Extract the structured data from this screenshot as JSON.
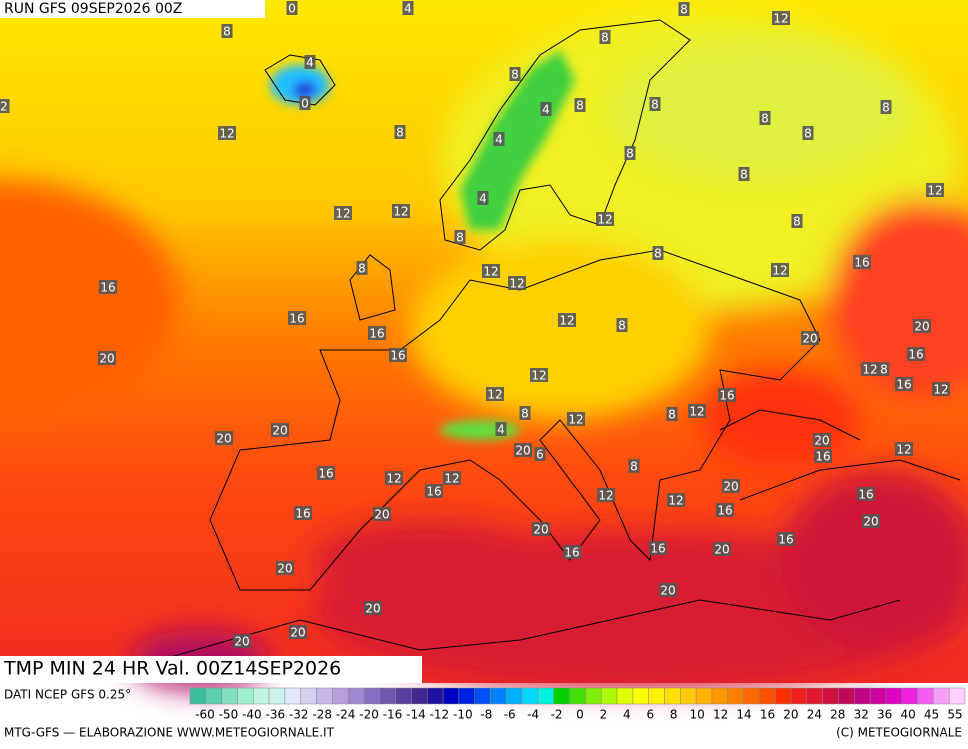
{
  "header": {
    "run": "RUN GFS 09SEP2026 00Z",
    "field": "TMP MIN 24 HR Val. 00Z14SEP2026"
  },
  "map_labels": [
    0,
    4,
    8,
    12,
    8,
    8,
    4,
    8,
    0,
    2,
    4,
    8,
    8,
    8,
    8,
    12,
    8,
    8,
    4,
    8,
    8,
    12,
    4,
    12,
    12,
    12,
    8,
    8,
    8,
    16,
    8,
    12,
    12,
    12,
    16,
    16,
    12,
    8,
    20,
    16,
    20,
    20,
    16,
    16,
    12,
    8,
    12,
    16,
    12,
    12,
    16,
    8,
    8,
    12,
    12,
    4,
    20,
    20,
    20,
    20,
    6,
    16,
    12,
    8,
    16,
    12,
    12,
    20,
    16,
    16,
    12,
    12,
    16,
    20,
    16,
    20,
    20,
    16,
    16,
    20,
    16,
    20,
    20,
    20,
    20,
    20
  ],
  "legend": {
    "source": "DATI NCEP GFS 0.25°",
    "colors": [
      "#3fbf9f",
      "#5fcfaf",
      "#7fdfbf",
      "#9fefcf",
      "#bff5e0",
      "#d0f0f0",
      "#e0e8f8",
      "#d8d0f0",
      "#c8b8e8",
      "#b8a0e0",
      "#a088d0",
      "#8870c0",
      "#7058b0",
      "#5840a0",
      "#402890",
      "#2010a0",
      "#0000c0",
      "#0020e0",
      "#0050ff",
      "#0080ff",
      "#00b0ff",
      "#00d8ff",
      "#00f0e0",
      "#00d000",
      "#40e000",
      "#80f000",
      "#b0f800",
      "#e0ff00",
      "#ffff00",
      "#fff000",
      "#ffe000",
      "#ffc800",
      "#ffb000",
      "#ff9800",
      "#ff8000",
      "#ff6800",
      "#ff5000",
      "#ff3000",
      "#f02020",
      "#e01830",
      "#d01040",
      "#c00858",
      "#c00080",
      "#d000a0",
      "#e000c0",
      "#f020e0",
      "#f060f0",
      "#f8a0f8",
      "#ffd0ff"
    ],
    "ticks": [
      -60,
      -50,
      -40,
      -36,
      -32,
      -28,
      -24,
      -20,
      -16,
      -14,
      -12,
      -10,
      -8,
      -6,
      -4,
      -2,
      0,
      2,
      4,
      6,
      8,
      10,
      12,
      14,
      16,
      20,
      24,
      28,
      32,
      36,
      40,
      45,
      55
    ]
  },
  "footer": {
    "left": "MTG-GFS — ELABORAZIONE WWW.METEOGIORNALE.IT",
    "right": "(C) METEOGIORNALE"
  }
}
